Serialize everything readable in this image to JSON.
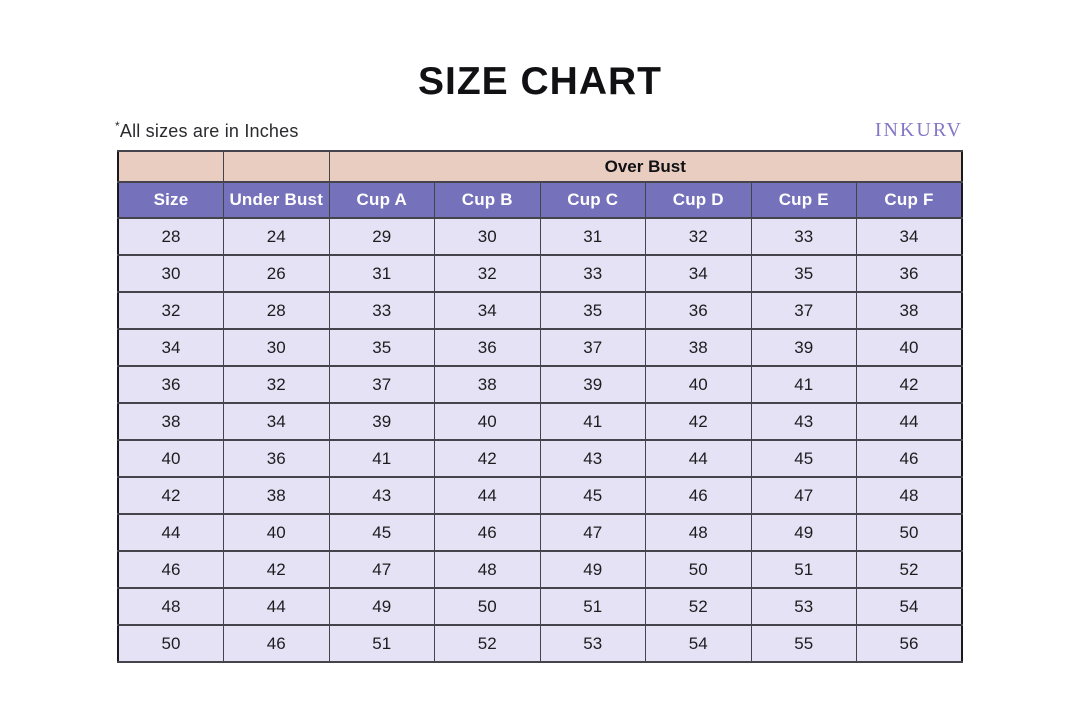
{
  "header": {
    "title": "SIZE CHART",
    "note_mark": "*",
    "note_text": "All sizes are in Inches",
    "brand": "INKURV"
  },
  "chart_data": {
    "type": "table",
    "title": "SIZE CHART",
    "units": "Inches",
    "group_header": "Over Bust",
    "group_span_columns": [
      "Cup A",
      "Cup B",
      "Cup C",
      "Cup D",
      "Cup E",
      "Cup F"
    ],
    "columns": [
      "Size",
      "Under Bust",
      "Cup A",
      "Cup B",
      "Cup C",
      "Cup D",
      "Cup E",
      "Cup F"
    ],
    "rows": [
      [
        28,
        24,
        29,
        30,
        31,
        32,
        33,
        34
      ],
      [
        30,
        26,
        31,
        32,
        33,
        34,
        35,
        36
      ],
      [
        32,
        28,
        33,
        34,
        35,
        36,
        37,
        38
      ],
      [
        34,
        30,
        35,
        36,
        37,
        38,
        39,
        40
      ],
      [
        36,
        32,
        37,
        38,
        39,
        40,
        41,
        42
      ],
      [
        38,
        34,
        39,
        40,
        41,
        42,
        43,
        44
      ],
      [
        40,
        36,
        41,
        42,
        43,
        44,
        45,
        46
      ],
      [
        42,
        38,
        43,
        44,
        45,
        46,
        47,
        48
      ],
      [
        44,
        40,
        45,
        46,
        47,
        48,
        49,
        50
      ],
      [
        46,
        42,
        47,
        48,
        49,
        50,
        51,
        52
      ],
      [
        48,
        44,
        49,
        50,
        51,
        52,
        53,
        54
      ],
      [
        50,
        46,
        51,
        52,
        53,
        54,
        55,
        56
      ]
    ]
  },
  "colors": {
    "group_header_bg": "#e9cdc0",
    "column_header_bg": "#7571ba",
    "data_cell_bg": "#e4e2f4",
    "brand_purple": "#8478c6",
    "inner_border": "#45444d",
    "outer_border": "#1a1a1e",
    "title_text": "#111114",
    "header_text": "#ffffff"
  }
}
